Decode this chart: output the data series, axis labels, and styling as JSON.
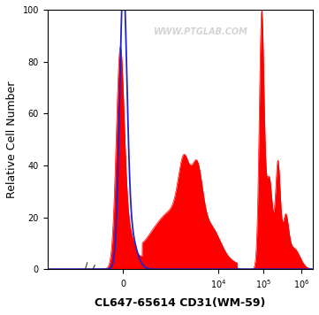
{
  "title": "CL647-65614 CD31(WM-59)",
  "ylabel": "Relative Cell Number",
  "watermark": "WWW.PTGLAB.COM",
  "ylim": [
    0,
    100
  ],
  "background_color": "#ffffff",
  "plot_bg_color": "#ffffff",
  "blue_color": "#2222cc",
  "red_color": "#ff0000",
  "title_fontsize": 9,
  "ylabel_fontsize": 9,
  "yticks": [
    0,
    20,
    40,
    60,
    80,
    100
  ],
  "xlim": [
    -0.5,
    6.5
  ],
  "x_zero": 1.5,
  "x_1e4": 4.0,
  "x_1e5": 5.2,
  "x_1e6": 6.2,
  "xtick_positions": [
    1.5,
    4.0,
    5.2,
    6.2
  ],
  "xtick_labels": [
    "$0$",
    "$10^4$",
    "$10^5$",
    "$10^6$"
  ]
}
